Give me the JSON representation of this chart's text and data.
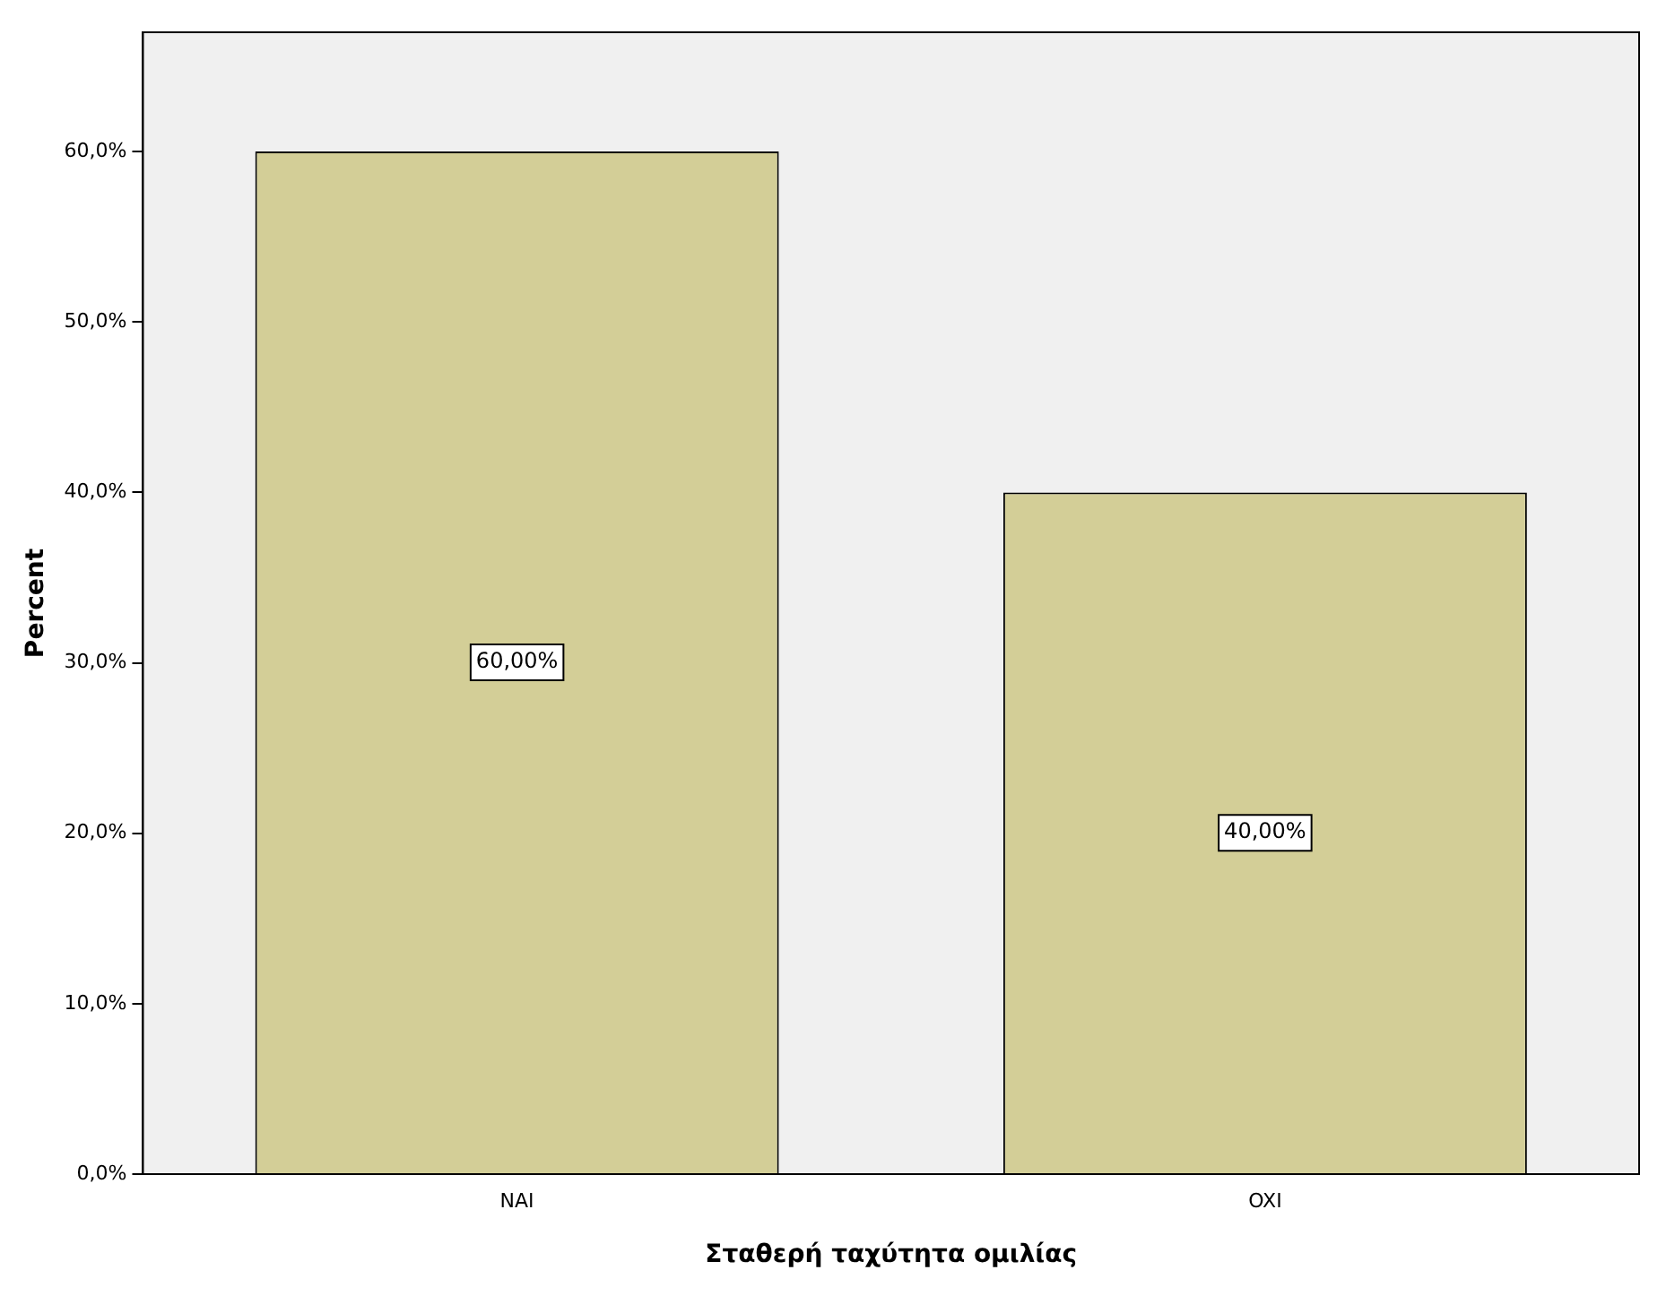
{
  "chart_data": {
    "type": "bar",
    "xlabel": "Σταθερή ταχύτητα ομιλίας",
    "ylabel": "Percent",
    "categories": [
      "NAI",
      "OXI"
    ],
    "values": [
      60,
      40
    ],
    "color": "#d3ce97",
    "value_labels": [
      "60,00%",
      "40,00%"
    ],
    "ylim": [
      0,
      67
    ],
    "yticks": [
      {
        "value": 0,
        "label": "0,0%"
      },
      {
        "value": 10,
        "label": "10,0%"
      },
      {
        "value": 20,
        "label": "20,0%"
      },
      {
        "value": 30,
        "label": "30,0%"
      },
      {
        "value": 40,
        "label": "40,0%"
      },
      {
        "value": 50,
        "label": "50,0%"
      },
      {
        "value": 60,
        "label": "60,0%"
      }
    ],
    "grid": false,
    "legend": false
  }
}
